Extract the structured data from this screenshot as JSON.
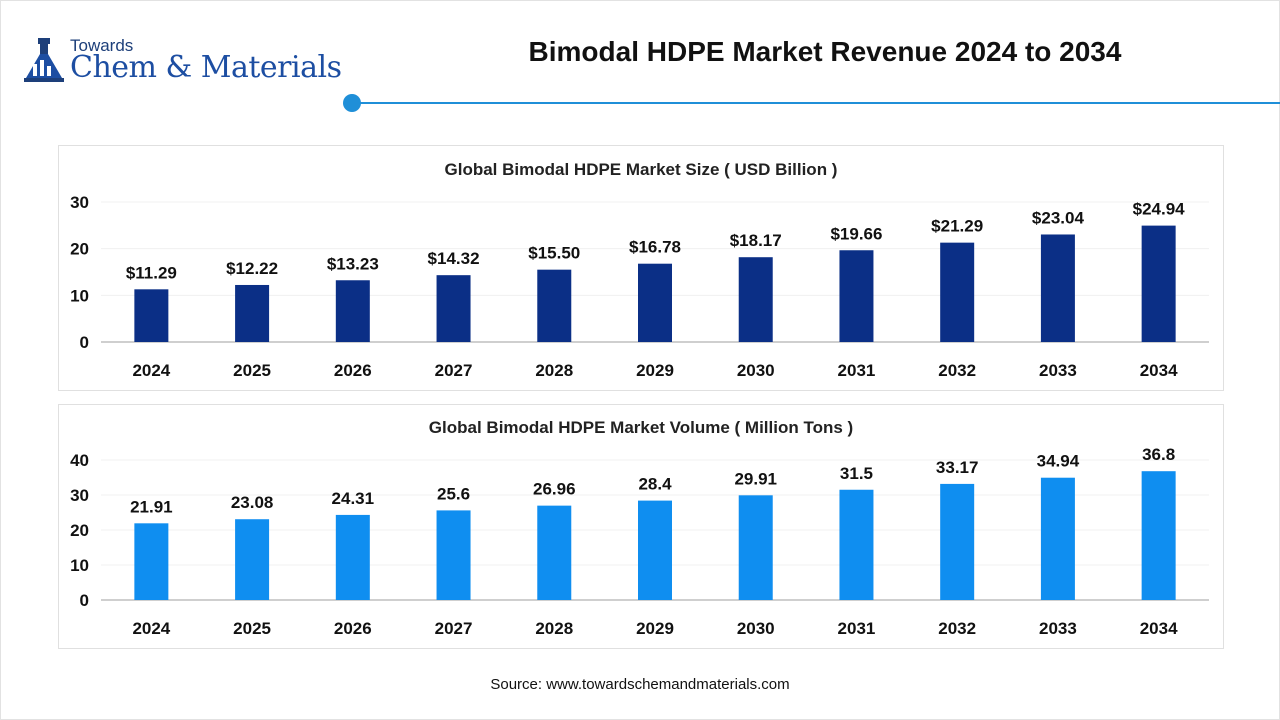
{
  "header": {
    "logo_small": "Towards",
    "logo_big": "Chem & Materials",
    "title": "Bimodal HDPE Market Revenue 2024 to 2034"
  },
  "source": "Source: www.towardschemandmaterials.com",
  "colors": {
    "accent": "#1f8fd8",
    "size_bar": "#0b2f86",
    "volume_bar": "#0f8ef0"
  },
  "chart_data": [
    {
      "type": "bar",
      "title": "Global Bimodal HDPE Market Size ( USD Billion )",
      "categories": [
        "2024",
        "2025",
        "2026",
        "2027",
        "2028",
        "2029",
        "2030",
        "2031",
        "2032",
        "2033",
        "2034"
      ],
      "values": [
        11.29,
        12.22,
        13.23,
        14.32,
        15.5,
        16.78,
        18.17,
        19.66,
        21.29,
        23.04,
        24.94
      ],
      "labels": [
        "$11.29",
        "$12.22",
        "$13.23",
        "$14.32",
        "$15.50",
        "$16.78",
        "$18.17",
        "$19.66",
        "$21.29",
        "$23.04",
        "$24.94"
      ],
      "yticks": [
        "0",
        "10",
        "20",
        "30"
      ],
      "ylim": [
        0,
        30
      ],
      "xlabel": "",
      "ylabel": ""
    },
    {
      "type": "bar",
      "title": "Global Bimodal HDPE Market Volume ( Million Tons )",
      "categories": [
        "2024",
        "2025",
        "2026",
        "2027",
        "2028",
        "2029",
        "2030",
        "2031",
        "2032",
        "2033",
        "2034"
      ],
      "values": [
        21.91,
        23.08,
        24.31,
        25.6,
        26.96,
        28.4,
        29.91,
        31.5,
        33.17,
        34.94,
        36.8
      ],
      "labels": [
        "21.91",
        "23.08",
        "24.31",
        "25.6",
        "26.96",
        "28.4",
        "29.91",
        "31.5",
        "33.17",
        "34.94",
        "36.8"
      ],
      "yticks": [
        "0",
        "10",
        "20",
        "30",
        "40"
      ],
      "ylim": [
        0,
        40
      ],
      "xlabel": "",
      "ylabel": ""
    }
  ]
}
